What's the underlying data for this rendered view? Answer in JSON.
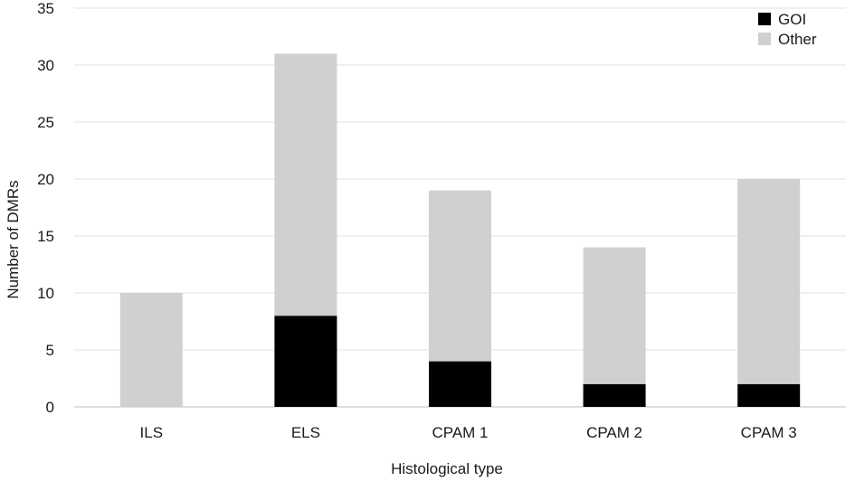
{
  "chart_data": {
    "type": "bar",
    "stacked": true,
    "xlabel": "Histological type",
    "ylabel": "Number of DMRs",
    "ylim": [
      0,
      35
    ],
    "yticks": [
      0,
      5,
      10,
      15,
      20,
      25,
      30,
      35
    ],
    "grid": "horizontal",
    "legend_position": "top-right",
    "categories": [
      "ILS",
      "ELS",
      "CPAM 1",
      "CPAM 2",
      "CPAM 3"
    ],
    "series": [
      {
        "name": "GOI",
        "color": "#000000",
        "values": [
          0,
          8,
          4,
          2,
          2
        ]
      },
      {
        "name": "Other",
        "color": "#d0d0d0",
        "values": [
          10,
          23,
          15,
          12,
          18
        ]
      }
    ]
  }
}
